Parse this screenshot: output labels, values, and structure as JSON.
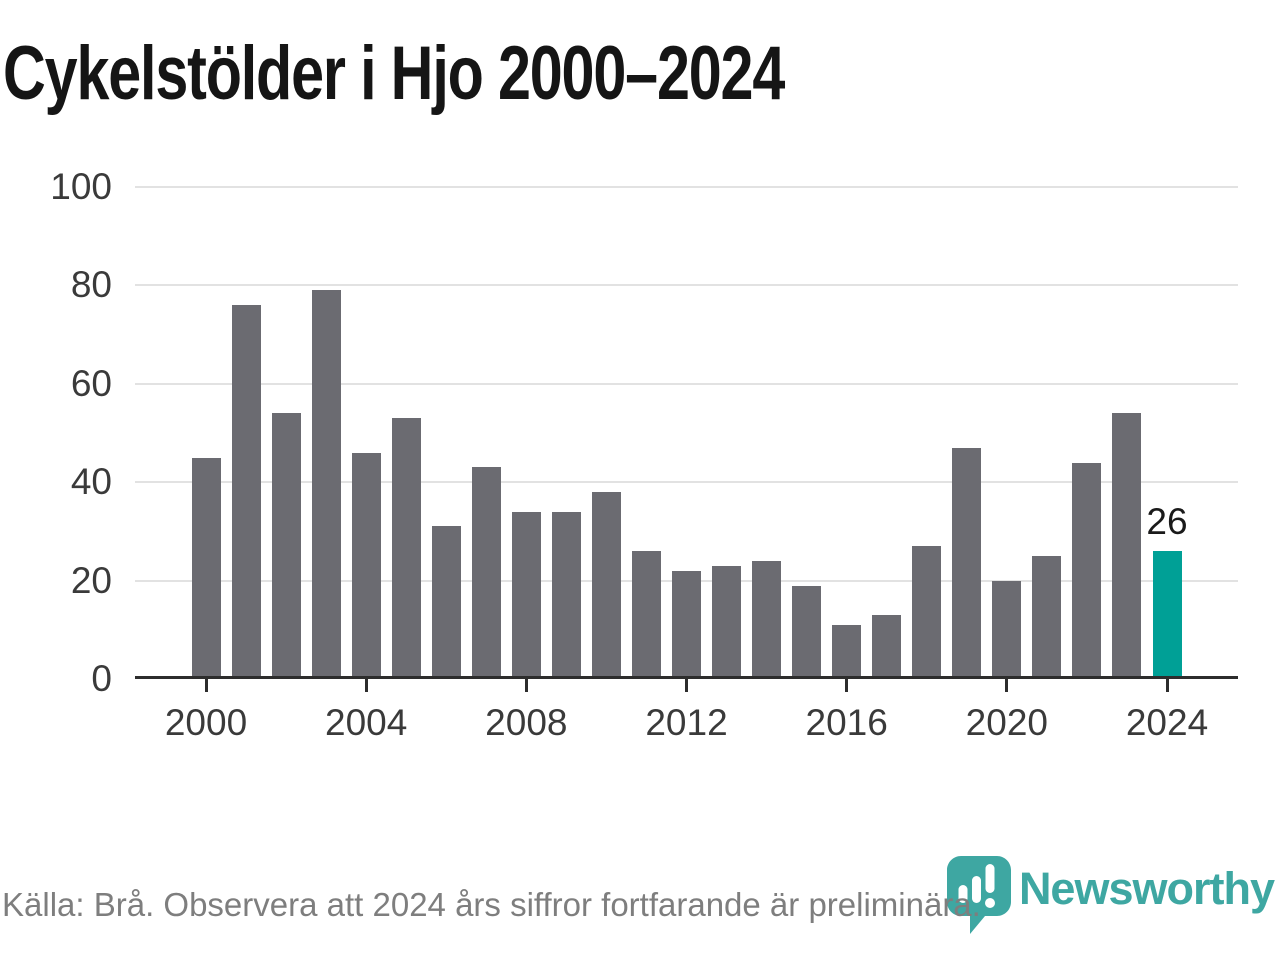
{
  "header": {
    "title": "Cykelstölder i Hjo 2000–2024"
  },
  "footer": {
    "source_note": "Källa: Brå. Observera att 2024 års siffror fortfarande är preliminära.",
    "brand_name": "Newsworthy",
    "brand_icon": "bar-chart-speech-bubble-icon"
  },
  "colors": {
    "bar": "#6b6b71",
    "highlight": "#00a096",
    "brand": "#3ea7a2",
    "grid": "#e2e2e2",
    "axis": "#2d2d2d",
    "tick_label": "#3a3a3a",
    "annotation": "#1a1a1a",
    "muted_text": "#7e7e7e"
  },
  "chart_data": {
    "type": "bar",
    "title": "Cykelstölder i Hjo 2000–2024",
    "x": [
      2000,
      2001,
      2002,
      2003,
      2004,
      2005,
      2006,
      2007,
      2008,
      2009,
      2010,
      2011,
      2012,
      2013,
      2014,
      2015,
      2016,
      2017,
      2018,
      2019,
      2020,
      2021,
      2022,
      2023,
      2024
    ],
    "values": [
      45,
      76,
      54,
      79,
      46,
      53,
      31,
      43,
      34,
      34,
      38,
      26,
      22,
      23,
      24,
      19,
      11,
      13,
      27,
      47,
      20,
      25,
      44,
      54,
      26
    ],
    "highlight": {
      "x": 2024,
      "value": 26,
      "label": "26"
    },
    "xticks": [
      2000,
      2004,
      2008,
      2012,
      2016,
      2020,
      2024
    ],
    "yticks": [
      0,
      20,
      40,
      60,
      80,
      100
    ],
    "ylim": [
      0,
      100
    ],
    "xlabel": "",
    "ylabel": "",
    "grid": "horizontal",
    "legend": "none"
  }
}
